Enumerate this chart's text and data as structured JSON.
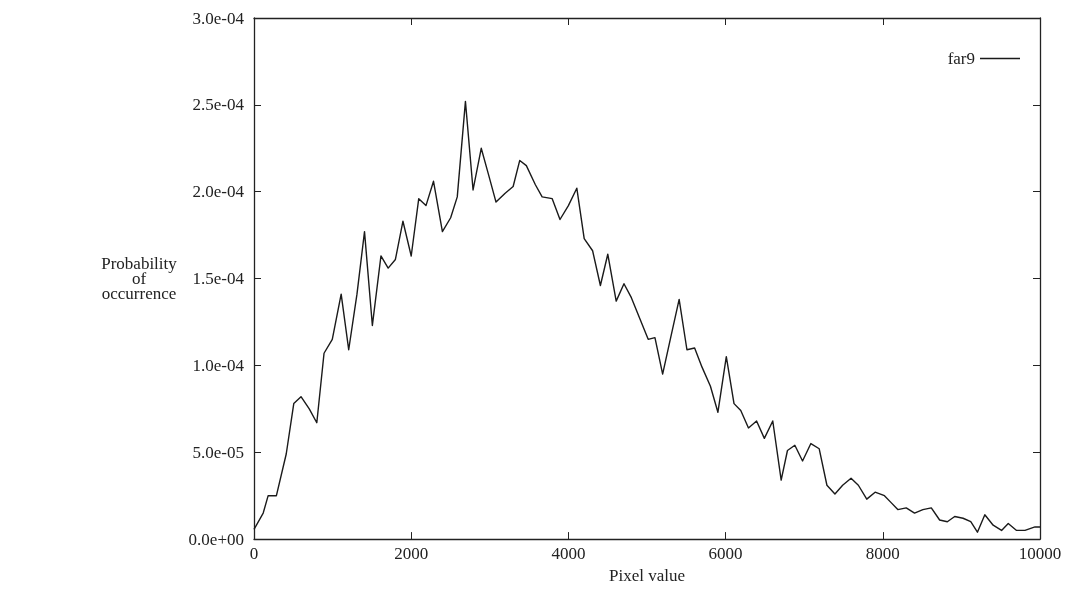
{
  "chart_data": {
    "type": "line",
    "xlabel": "Pixel value",
    "ylabel": "Probability of occurrence",
    "xlim": [
      0,
      10000
    ],
    "xticks": [
      0,
      2000,
      4000,
      6000,
      8000,
      10000
    ],
    "ylim": [
      0,
      0.0003
    ],
    "yticks": [
      {
        "value": 0,
        "label": "0.0e+00"
      },
      {
        "value": 5e-05,
        "label": "5.0e-05"
      },
      {
        "value": 0.0001,
        "label": "1.0e-04"
      },
      {
        "value": 0.00015,
        "label": "1.5e-04"
      },
      {
        "value": 0.0002,
        "label": "2.0e-04"
      },
      {
        "value": 0.00025,
        "label": "2.5e-04"
      },
      {
        "value": 0.0003,
        "label": "3.0e-04"
      }
    ],
    "grid": false,
    "legend": "top right",
    "marker": "none",
    "line_style": "solid",
    "series": [
      {
        "name": "far9",
        "color": "#1a1a1a",
        "x": [
          0,
          117,
          180,
          285,
          410,
          506,
          598,
          703,
          799,
          891,
          996,
          1109,
          1205,
          1310,
          1406,
          1506,
          1615,
          1707,
          1799,
          1895,
          2000,
          2096,
          2188,
          2284,
          2397,
          2502,
          2586,
          2690,
          2787,
          2891,
          2983,
          3079,
          3192,
          3297,
          3381,
          3465,
          3580,
          3666,
          3794,
          3893,
          4000,
          4107,
          4201,
          4308,
          4407,
          4501,
          4608,
          4707,
          4801,
          4908,
          5015,
          5101,
          5199,
          5306,
          5409,
          5508,
          5606,
          5700,
          5807,
          5902,
          6009,
          6107,
          6193,
          6291,
          6394,
          6493,
          6600,
          6707,
          6787,
          6881,
          6979,
          7085,
          7191,
          7289,
          7391,
          7489,
          7596,
          7689,
          7796,
          7902,
          8021,
          8106,
          8191,
          8298,
          8404,
          8510,
          8617,
          8723,
          8821,
          8915,
          9021,
          9119,
          9204,
          9298,
          9404,
          9511,
          9596,
          9702,
          9809,
          9936,
          10000
        ],
        "values": [
          5.6e-06,
          1.5e-05,
          2.5e-05,
          2.5e-05,
          4.9e-05,
          7.8e-05,
          8.2e-05,
          7.5e-05,
          6.7e-05,
          0.000107,
          0.000115,
          0.000141,
          0.000109,
          0.000141,
          0.000177,
          0.000123,
          0.000163,
          0.000156,
          0.000161,
          0.000183,
          0.000163,
          0.000196,
          0.000192,
          0.000206,
          0.000177,
          0.000185,
          0.000197,
          0.000252,
          0.000201,
          0.000225,
          0.00021,
          0.000194,
          0.000199,
          0.000203,
          0.000218,
          0.000215,
          0.000204,
          0.000197,
          0.000196,
          0.000184,
          0.000192,
          0.000202,
          0.000173,
          0.000166,
          0.000146,
          0.000164,
          0.000137,
          0.000147,
          0.000139,
          0.000127,
          0.000115,
          0.000116,
          9.5e-05,
          0.000117,
          0.000138,
          0.000109,
          0.00011,
          9.9e-05,
          8.8e-05,
          7.3e-05,
          0.000105,
          7.8e-05,
          7.4e-05,
          6.4e-05,
          6.8e-05,
          5.8e-05,
          6.8e-05,
          3.4e-05,
          5.1e-05,
          5.4e-05,
          4.5e-05,
          5.5e-05,
          5.2e-05,
          3.1e-05,
          2.6e-05,
          3.1e-05,
          3.5e-05,
          3.1e-05,
          2.3e-05,
          2.7e-05,
          2.5e-05,
          2.1e-05,
          1.7e-05,
          1.8e-05,
          1.5e-05,
          1.7e-05,
          1.8e-05,
          1.1e-05,
          1e-05,
          1.3e-05,
          1.2e-05,
          1e-05,
          4e-06,
          1.4e-05,
          8e-06,
          5e-06,
          9e-06,
          5e-06,
          5e-06,
          7e-06,
          7e-06
        ]
      }
    ]
  }
}
